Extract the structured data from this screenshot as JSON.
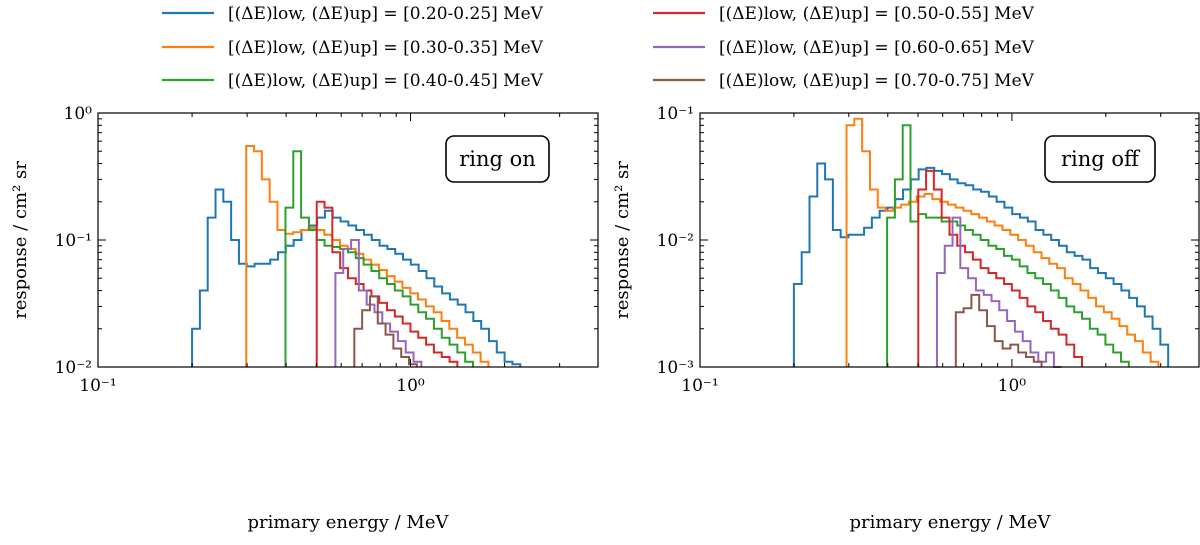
{
  "figure": {
    "legend": [
      {
        "label": "[(ΔE)low, (ΔE)up] = [0.20-0.25] MeV",
        "color": "#1f77b4"
      },
      {
        "label": "[(ΔE)low, (ΔE)up] = [0.30-0.35] MeV",
        "color": "#ff7f0e"
      },
      {
        "label": "[(ΔE)low, (ΔE)up] = [0.40-0.45] MeV",
        "color": "#2ca02c"
      },
      {
        "label": "[(ΔE)low, (ΔE)up] = [0.50-0.55] MeV",
        "color": "#d62728"
      },
      {
        "label": "[(ΔE)low, (ΔE)up] = [0.60-0.65] MeV",
        "color": "#9467bd"
      },
      {
        "label": "[(ΔE)low, (ΔE)up] = [0.70-0.75] MeV",
        "color": "#8c564b"
      }
    ]
  },
  "chart_data": [
    {
      "type": "line",
      "title": "",
      "annotation": "ring on",
      "xlabel": "primary energy / MeV",
      "ylabel": "response / cm² sr",
      "xscale": "log",
      "yscale": "log",
      "xlim": [
        0.1,
        3.98
      ],
      "ylim": [
        0.01,
        1.0
      ],
      "xticks": [
        {
          "value": 0.1,
          "label": "10⁻¹"
        },
        {
          "value": 1.0,
          "label": "10⁰"
        }
      ],
      "yticks": [
        {
          "value": 0.01,
          "label": "10⁻²"
        },
        {
          "value": 0.1,
          "label": "10⁻¹"
        },
        {
          "value": 1.0,
          "label": "10⁰"
        }
      ],
      "step_series": [
        {
          "name": "[0.20-0.25] MeV",
          "color": "#1f77b4",
          "x_start": 0.2,
          "values": [
            0.02,
            0.04,
            0.15,
            0.25,
            0.2,
            0.1,
            0.065,
            0.062,
            0.065,
            0.065,
            0.07,
            0.08,
            0.09,
            0.1,
            0.12,
            0.13,
            0.15,
            0.17,
            0.15,
            0.14,
            0.13,
            0.12,
            0.11,
            0.1,
            0.09,
            0.085,
            0.078,
            0.07,
            0.064,
            0.057,
            0.05,
            0.043,
            0.038,
            0.034,
            0.031,
            0.027,
            0.023,
            0.02,
            0.016,
            0.013,
            0.011,
            0.0105
          ]
        },
        {
          "name": "[0.30-0.35] MeV",
          "color": "#ff7f0e",
          "x_start": 0.298,
          "values": [
            0.55,
            0.5,
            0.3,
            0.2,
            0.12,
            0.112,
            0.115,
            0.12,
            0.125,
            0.12,
            0.11,
            0.1,
            0.09,
            0.085,
            0.078,
            0.07,
            0.064,
            0.058,
            0.052,
            0.047,
            0.042,
            0.038,
            0.034,
            0.03,
            0.027,
            0.023,
            0.02,
            0.017,
            0.015,
            0.013,
            0.011
          ]
        },
        {
          "name": "[0.40-0.45] MeV",
          "color": "#2ca02c",
          "x_start": 0.398,
          "values": [
            0.18,
            0.5,
            0.15,
            0.12,
            0.1,
            0.09,
            0.088,
            0.085,
            0.08,
            0.072,
            0.064,
            0.057,
            0.05,
            0.045,
            0.04,
            0.036,
            0.031,
            0.027,
            0.024,
            0.02,
            0.017,
            0.015,
            0.013,
            0.011
          ]
        },
        {
          "name": "[0.50-0.55] MeV",
          "color": "#d62728",
          "x_start": 0.501,
          "values": [
            0.2,
            0.18,
            0.08,
            0.06,
            0.05,
            0.045,
            0.04,
            0.036,
            0.032,
            0.028,
            0.025,
            0.022,
            0.019,
            0.017,
            0.015,
            0.013,
            0.012,
            0.011
          ]
        },
        {
          "name": "[0.60-0.65] MeV",
          "color": "#9467bd",
          "x_start": 0.575,
          "values": [
            0.055,
            0.085,
            0.1,
            0.04,
            0.031,
            0.027,
            0.022,
            0.019,
            0.016,
            0.013,
            0.011
          ]
        },
        {
          "name": "[0.70-0.75] MeV",
          "color": "#8c564b",
          "x_start": 0.661,
          "values": [
            0.02,
            0.028,
            0.036,
            0.022,
            0.018,
            0.014,
            0.012,
            0.0105
          ]
        }
      ]
    },
    {
      "type": "line",
      "title": "",
      "annotation": "ring off",
      "xlabel": "primary energy / MeV",
      "ylabel": "response / cm² sr",
      "xscale": "log",
      "yscale": "log",
      "xlim": [
        0.1,
        3.98
      ],
      "ylim": [
        0.001,
        0.1
      ],
      "xticks": [
        {
          "value": 0.1,
          "label": "10⁻¹"
        },
        {
          "value": 1.0,
          "label": "10⁰"
        }
      ],
      "yticks": [
        {
          "value": 0.001,
          "label": "10⁻³"
        },
        {
          "value": 0.01,
          "label": "10⁻²"
        },
        {
          "value": 0.1,
          "label": "10⁻¹"
        }
      ],
      "step_series": [
        {
          "name": "[0.20-0.25] MeV",
          "color": "#1f77b4",
          "x_start": 0.2,
          "values": [
            0.0045,
            0.008,
            0.022,
            0.04,
            0.03,
            0.012,
            0.0105,
            0.011,
            0.011,
            0.0125,
            0.015,
            0.017,
            0.018,
            0.021,
            0.025,
            0.03,
            0.036,
            0.037,
            0.035,
            0.033,
            0.03,
            0.028,
            0.027,
            0.025,
            0.024,
            0.022,
            0.02,
            0.018,
            0.016,
            0.015,
            0.014,
            0.012,
            0.011,
            0.01,
            0.009,
            0.008,
            0.0075,
            0.007,
            0.006,
            0.0055,
            0.005,
            0.0045,
            0.004,
            0.0035,
            0.003,
            0.0025,
            0.002,
            0.0015
          ]
        },
        {
          "name": "[0.30-0.35] MeV",
          "color": "#ff7f0e",
          "x_start": 0.295,
          "values": [
            0.08,
            0.09,
            0.05,
            0.025,
            0.018,
            0.017,
            0.018,
            0.019,
            0.02,
            0.022,
            0.023,
            0.021,
            0.02,
            0.019,
            0.018,
            0.017,
            0.016,
            0.015,
            0.014,
            0.013,
            0.012,
            0.011,
            0.01,
            0.009,
            0.008,
            0.0072,
            0.0065,
            0.006,
            0.005,
            0.0045,
            0.004,
            0.0035,
            0.003,
            0.0027,
            0.0024,
            0.0021,
            0.0018,
            0.0016,
            0.0013,
            0.0011
          ]
        },
        {
          "name": "[0.40-0.45] MeV",
          "color": "#2ca02c",
          "x_start": 0.398,
          "values": [
            0.015,
            0.03,
            0.08,
            0.014,
            0.016,
            0.015,
            0.015,
            0.014,
            0.014,
            0.013,
            0.012,
            0.011,
            0.01,
            0.009,
            0.0085,
            0.0075,
            0.007,
            0.0062,
            0.0055,
            0.005,
            0.0045,
            0.004,
            0.0035,
            0.003,
            0.0027,
            0.0024,
            0.002,
            0.0018,
            0.0015,
            0.0013,
            0.0011
          ]
        },
        {
          "name": "[0.50-0.55] MeV",
          "color": "#d62728",
          "x_start": 0.501,
          "values": [
            0.025,
            0.035,
            0.025,
            0.015,
            0.011,
            0.009,
            0.008,
            0.007,
            0.006,
            0.0055,
            0.005,
            0.0045,
            0.004,
            0.0035,
            0.003,
            0.0027,
            0.0023,
            0.002,
            0.0018,
            0.0015,
            0.0012
          ]
        },
        {
          "name": "[0.60-0.65] MeV",
          "color": "#9467bd",
          "x_start": 0.575,
          "values": [
            0.0055,
            0.009,
            0.015,
            0.006,
            0.005,
            0.004,
            0.0037,
            0.0033,
            0.0028,
            0.0023,
            0.0019,
            0.0016,
            0.0013,
            0.0011,
            0.0013,
            0.001
          ]
        },
        {
          "name": "[0.70-0.75] MeV",
          "color": "#8c564b",
          "x_start": 0.661,
          "values": [
            0.0027,
            0.0029,
            0.0037,
            0.0028,
            0.0021,
            0.0016,
            0.0014,
            0.0015,
            0.0013,
            0.0012,
            0.0011
          ]
        }
      ]
    }
  ]
}
